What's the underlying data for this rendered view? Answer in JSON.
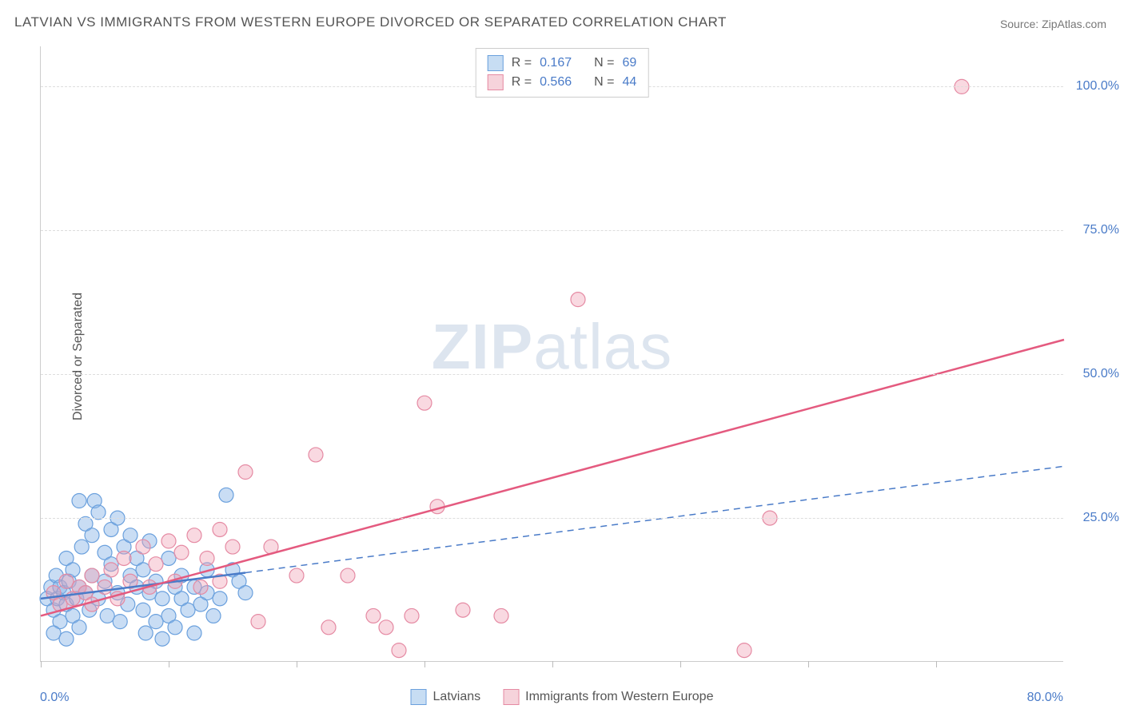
{
  "title": "LATVIAN VS IMMIGRANTS FROM WESTERN EUROPE DIVORCED OR SEPARATED CORRELATION CHART",
  "source": "Source: ZipAtlas.com",
  "y_axis_title": "Divorced or Separated",
  "watermark_bold": "ZIP",
  "watermark_light": "atlas",
  "chart": {
    "type": "scatter",
    "xlim": [
      0,
      80
    ],
    "ylim": [
      0,
      107
    ],
    "xtick_positions": [
      0,
      10,
      20,
      30,
      40,
      50,
      60,
      70
    ],
    "x_label_min": "0.0%",
    "x_label_max": "80.0%",
    "yticks": [
      {
        "pos": 25,
        "label": "25.0%"
      },
      {
        "pos": 50,
        "label": "50.0%"
      },
      {
        "pos": 75,
        "label": "75.0%"
      },
      {
        "pos": 100,
        "label": "100.0%"
      }
    ],
    "grid_y": [
      25,
      50,
      75,
      100
    ],
    "background_color": "#ffffff",
    "grid_color": "#dddddd",
    "axis_color": "#cccccc",
    "series": [
      {
        "name": "Latvians",
        "color_fill": "rgba(135, 180, 230, 0.45)",
        "color_stroke": "#6aa0dd",
        "swatch_fill": "#c7ddf3",
        "swatch_border": "#6aa0dd",
        "marker_radius": 9,
        "R": "0.167",
        "N": "69",
        "trend": {
          "x1": 0,
          "y1": 11,
          "x2": 16,
          "y2": 15.5,
          "solid_color": "#4a7bc8",
          "solid_width": 2.5,
          "dash_x1": 16,
          "dash_y1": 15.5,
          "dash_x2": 80,
          "dash_y2": 34,
          "dash_color": "#4a7bc8",
          "dash_pattern": "8,6",
          "dash_width": 1.5
        },
        "points": [
          [
            0.5,
            11
          ],
          [
            0.8,
            13
          ],
          [
            1.0,
            9
          ],
          [
            1.2,
            15
          ],
          [
            1.3,
            11
          ],
          [
            1.5,
            7
          ],
          [
            1.5,
            13
          ],
          [
            1.8,
            12
          ],
          [
            2.0,
            10
          ],
          [
            2.0,
            18
          ],
          [
            2.2,
            14
          ],
          [
            2.5,
            8
          ],
          [
            2.5,
            16
          ],
          [
            2.8,
            11
          ],
          [
            3.0,
            6
          ],
          [
            3.0,
            13
          ],
          [
            3.2,
            20
          ],
          [
            3.5,
            24
          ],
          [
            3.5,
            12
          ],
          [
            3.8,
            9
          ],
          [
            4.0,
            15
          ],
          [
            4.0,
            22
          ],
          [
            4.2,
            28
          ],
          [
            4.5,
            11
          ],
          [
            4.5,
            26
          ],
          [
            5.0,
            14
          ],
          [
            5.0,
            19
          ],
          [
            5.2,
            8
          ],
          [
            5.5,
            17
          ],
          [
            5.5,
            23
          ],
          [
            6.0,
            12
          ],
          [
            6.0,
            25
          ],
          [
            6.2,
            7
          ],
          [
            6.5,
            20
          ],
          [
            6.8,
            10
          ],
          [
            7.0,
            15
          ],
          [
            7.0,
            22
          ],
          [
            7.5,
            13
          ],
          [
            7.5,
            18
          ],
          [
            8.0,
            9
          ],
          [
            8.0,
            16
          ],
          [
            8.2,
            5
          ],
          [
            8.5,
            12
          ],
          [
            8.5,
            21
          ],
          [
            9.0,
            7
          ],
          [
            9.0,
            14
          ],
          [
            9.5,
            11
          ],
          [
            9.5,
            4
          ],
          [
            10.0,
            18
          ],
          [
            10.0,
            8
          ],
          [
            10.5,
            13
          ],
          [
            10.5,
            6
          ],
          [
            11.0,
            11
          ],
          [
            11.0,
            15
          ],
          [
            11.5,
            9
          ],
          [
            12.0,
            13
          ],
          [
            12.0,
            5
          ],
          [
            12.5,
            10
          ],
          [
            13.0,
            12
          ],
          [
            13.0,
            16
          ],
          [
            13.5,
            8
          ],
          [
            14.0,
            11
          ],
          [
            14.5,
            29
          ],
          [
            15.0,
            16
          ],
          [
            15.5,
            14
          ],
          [
            16.0,
            12
          ],
          [
            1.0,
            5
          ],
          [
            2.0,
            4
          ],
          [
            3.0,
            28
          ]
        ]
      },
      {
        "name": "Immigrants from Western Europe",
        "color_fill": "rgba(240, 160, 180, 0.40)",
        "color_stroke": "#e58aa3",
        "swatch_fill": "#f6d3db",
        "swatch_border": "#e58aa3",
        "marker_radius": 9,
        "R": "0.566",
        "N": "44",
        "trend": {
          "x1": 0,
          "y1": 8,
          "x2": 80,
          "y2": 56,
          "solid_color": "#e45a7f",
          "solid_width": 2.5
        },
        "points": [
          [
            1.0,
            12
          ],
          [
            1.5,
            10
          ],
          [
            2.0,
            14
          ],
          [
            2.5,
            11
          ],
          [
            3.0,
            13
          ],
          [
            3.5,
            12
          ],
          [
            4.0,
            15
          ],
          [
            5.0,
            13
          ],
          [
            6.0,
            11
          ],
          [
            6.5,
            18
          ],
          [
            7.0,
            14
          ],
          [
            8.0,
            20
          ],
          [
            8.5,
            13
          ],
          [
            9.0,
            17
          ],
          [
            10.0,
            21
          ],
          [
            10.5,
            14
          ],
          [
            11.0,
            19
          ],
          [
            12.0,
            22
          ],
          [
            12.5,
            13
          ],
          [
            13.0,
            18
          ],
          [
            14.0,
            23
          ],
          [
            14.0,
            14
          ],
          [
            15.0,
            20
          ],
          [
            16.0,
            33
          ],
          [
            17.0,
            7
          ],
          [
            18.0,
            20
          ],
          [
            20.0,
            15
          ],
          [
            21.5,
            36
          ],
          [
            22.5,
            6
          ],
          [
            24.0,
            15
          ],
          [
            26.0,
            8
          ],
          [
            27.0,
            6
          ],
          [
            28.0,
            2
          ],
          [
            29.0,
            8
          ],
          [
            30.0,
            45
          ],
          [
            31.0,
            27
          ],
          [
            33.0,
            9
          ],
          [
            36.0,
            8
          ],
          [
            42.0,
            63
          ],
          [
            55.0,
            2
          ],
          [
            57.0,
            25
          ],
          [
            72.0,
            100
          ],
          [
            4.0,
            10
          ],
          [
            5.5,
            16
          ]
        ]
      }
    ]
  },
  "legend_top": {
    "r_label": "R  =",
    "n_label": "N  ="
  },
  "legend_bottom": {
    "items": [
      "Latvians",
      "Immigrants from Western Europe"
    ]
  }
}
